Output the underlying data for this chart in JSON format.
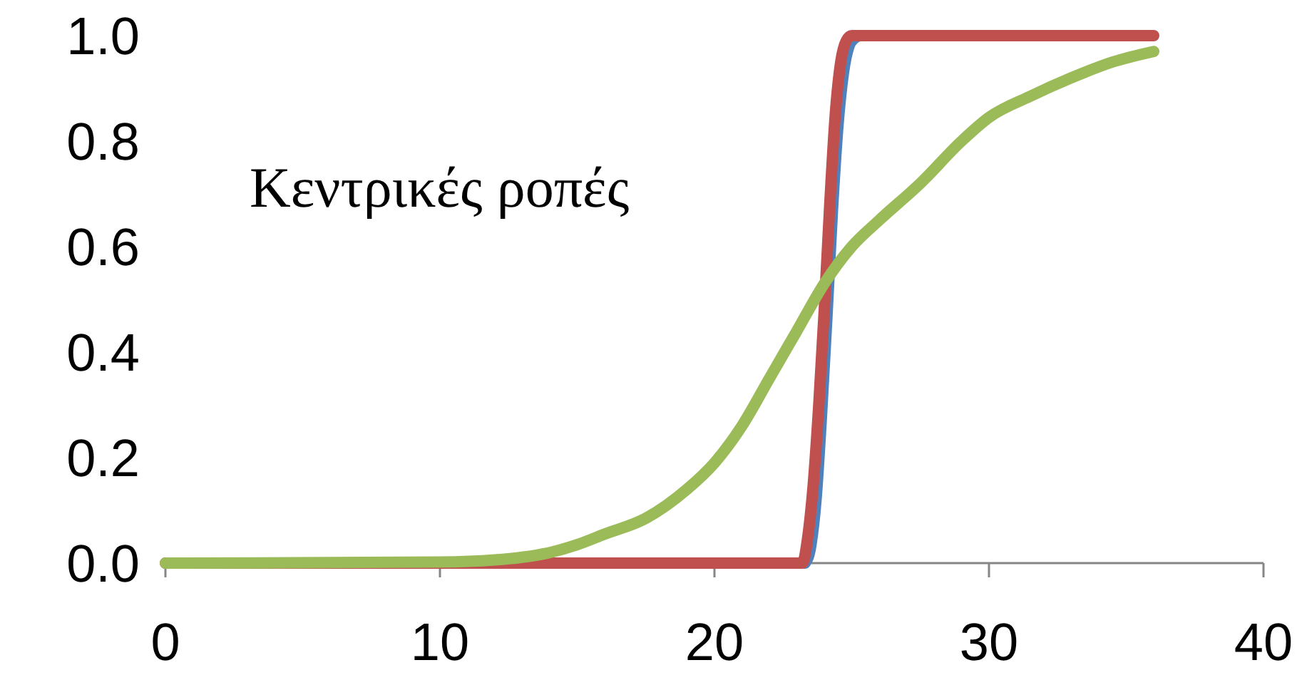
{
  "chart_data": {
    "type": "line",
    "annotations": [
      "Κεντρικές ροπές"
    ],
    "xlim": [
      0,
      40
    ],
    "xticks": [
      0,
      10,
      20,
      30,
      40
    ],
    "ylim": [
      0,
      1
    ],
    "yticks": [
      {
        "value": 0,
        "label": "0.0"
      },
      {
        "value": 0.2,
        "label": "0.2"
      },
      {
        "value": 0.4,
        "label": "0.4"
      },
      {
        "value": 0.6,
        "label": "0.6"
      },
      {
        "value": 0.8,
        "label": "0.8"
      },
      {
        "value": 1,
        "label": "1.0"
      }
    ],
    "grid": false,
    "marker": "none",
    "line_style": "solid",
    "series": [
      {
        "color": "#4f81bd",
        "x": [
          23.3,
          23.5,
          23.7,
          23.9,
          24.1,
          24.3,
          24.5,
          24.7,
          24.9,
          25.1,
          25.3
        ],
        "values": [
          0,
          0.03,
          0.12,
          0.28,
          0.47,
          0.67,
          0.83,
          0.93,
          0.98,
          0.995,
          1
        ]
      },
      {
        "color": "#c0504d",
        "x": [
          0,
          23.2,
          23.4,
          23.6,
          23.8,
          24,
          24.2,
          24.4,
          24.6,
          24.8,
          25,
          36
        ],
        "values": [
          0,
          0,
          0.05,
          0.15,
          0.3,
          0.48,
          0.68,
          0.85,
          0.95,
          0.99,
          1,
          1
        ]
      },
      {
        "color": "#9bbb59",
        "x": [
          0,
          10,
          12,
          14,
          15,
          16,
          17.5,
          19,
          20,
          21,
          22,
          23,
          24,
          25,
          26,
          27.5,
          29,
          30,
          31.5,
          33,
          34.5,
          36
        ],
        "values": [
          0,
          0.002,
          0.006,
          0.02,
          0.035,
          0.055,
          0.085,
          0.14,
          0.19,
          0.26,
          0.35,
          0.44,
          0.53,
          0.6,
          0.65,
          0.72,
          0.8,
          0.845,
          0.885,
          0.92,
          0.95,
          0.97
        ]
      }
    ]
  }
}
